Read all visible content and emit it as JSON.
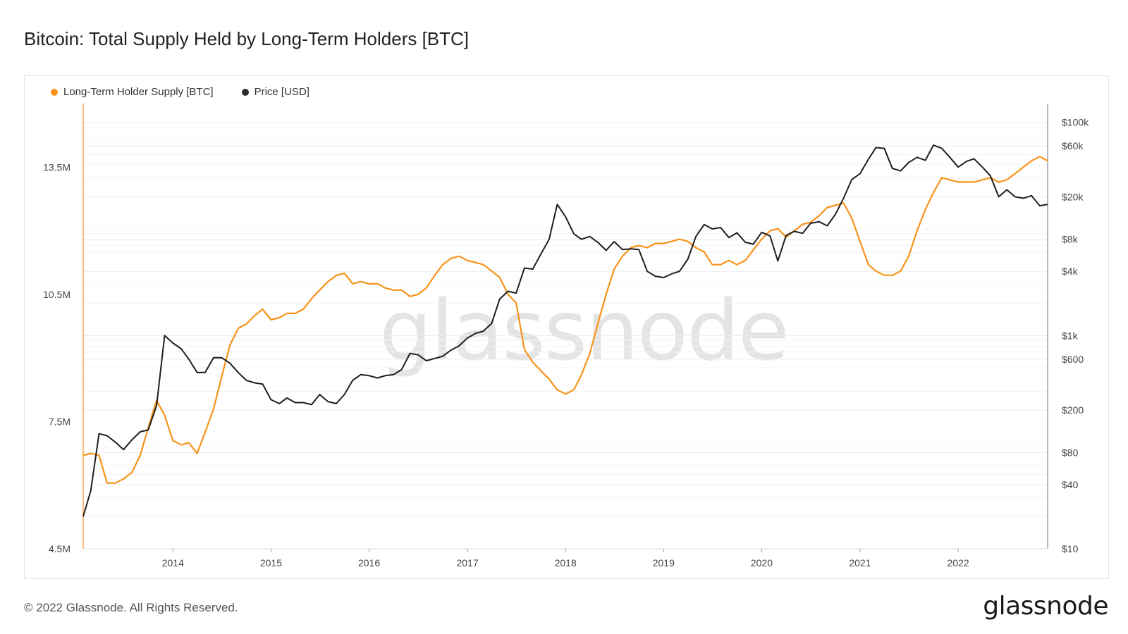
{
  "chart_title": "Bitcoin: Total Supply Held by Long-Term Holders [BTC]",
  "footer": "© 2022 Glassnode. All Rights Reserved.",
  "brand": "glassnode",
  "watermark": "glassnode",
  "colors": {
    "supply": "#f7931a",
    "price": "#1e1e1e",
    "grid": "#ececec"
  },
  "chart_data": {
    "type": "line",
    "title": "Bitcoin: Total Supply Held by Long-Term Holders [BTC]",
    "legend_position": "top-left",
    "grid": true,
    "x_ticks": [
      "2014",
      "2015",
      "2016",
      "2017",
      "2018",
      "2019",
      "2020",
      "2021",
      "2022"
    ],
    "x_range": [
      "2013-02-01",
      "2022-11-30"
    ],
    "y_left": {
      "ticks": [
        {
          "value": 4500000,
          "label": "4.5M"
        },
        {
          "value": 7500000,
          "label": "7.5M"
        },
        {
          "value": 10500000,
          "label": "10.5M"
        },
        {
          "value": 13500000,
          "label": "13.5M"
        }
      ],
      "range": [
        4500000,
        15000000
      ]
    },
    "y_right": {
      "scale": "log",
      "ticks": [
        {
          "value": 10,
          "label": "$10"
        },
        {
          "value": 40,
          "label": "$40"
        },
        {
          "value": 80,
          "label": "$80"
        },
        {
          "value": 200,
          "label": "$200"
        },
        {
          "value": 600,
          "label": "$600"
        },
        {
          "value": 1000,
          "label": "$1k"
        },
        {
          "value": 4000,
          "label": "$4k"
        },
        {
          "value": 8000,
          "label": "$8k"
        },
        {
          "value": 20000,
          "label": "$20k"
        },
        {
          "value": 60000,
          "label": "$60k"
        },
        {
          "value": 100000,
          "label": "$100k"
        }
      ],
      "range": [
        10,
        150000
      ]
    },
    "series": [
      {
        "name": "Long-Term Holder Supply [BTC]",
        "axis": "left",
        "points": [
          [
            "2013-02-01",
            6700000
          ],
          [
            "2013-03-01",
            6750000
          ],
          [
            "2013-04-01",
            6700000
          ],
          [
            "2013-05-01",
            6050000
          ],
          [
            "2013-06-01",
            6050000
          ],
          [
            "2013-07-01",
            6150000
          ],
          [
            "2013-08-01",
            6300000
          ],
          [
            "2013-09-01",
            6700000
          ],
          [
            "2013-10-01",
            7350000
          ],
          [
            "2013-11-01",
            8000000
          ],
          [
            "2013-12-01",
            7650000
          ],
          [
            "2014-01-01",
            7050000
          ],
          [
            "2014-02-01",
            6950000
          ],
          [
            "2014-03-01",
            7000000
          ],
          [
            "2014-04-01",
            6750000
          ],
          [
            "2014-05-01",
            7250000
          ],
          [
            "2014-06-01",
            7800000
          ],
          [
            "2014-07-01",
            8550000
          ],
          [
            "2014-08-01",
            9300000
          ],
          [
            "2014-09-01",
            9700000
          ],
          [
            "2014-10-01",
            9800000
          ],
          [
            "2014-11-01",
            10000000
          ],
          [
            "2014-12-01",
            10150000
          ],
          [
            "2015-01-01",
            9900000
          ],
          [
            "2015-02-01",
            9950000
          ],
          [
            "2015-03-01",
            10050000
          ],
          [
            "2015-04-01",
            10050000
          ],
          [
            "2015-05-01",
            10150000
          ],
          [
            "2015-06-01",
            10400000
          ],
          [
            "2015-07-01",
            10600000
          ],
          [
            "2015-08-01",
            10800000
          ],
          [
            "2015-09-01",
            10950000
          ],
          [
            "2015-10-01",
            11000000
          ],
          [
            "2015-11-01",
            10750000
          ],
          [
            "2015-12-01",
            10800000
          ],
          [
            "2016-01-01",
            10750000
          ],
          [
            "2016-02-01",
            10750000
          ],
          [
            "2016-03-01",
            10650000
          ],
          [
            "2016-04-01",
            10600000
          ],
          [
            "2016-05-01",
            10600000
          ],
          [
            "2016-06-01",
            10450000
          ],
          [
            "2016-07-01",
            10500000
          ],
          [
            "2016-08-01",
            10650000
          ],
          [
            "2016-09-01",
            10950000
          ],
          [
            "2016-10-01",
            11200000
          ],
          [
            "2016-11-01",
            11350000
          ],
          [
            "2016-12-01",
            11400000
          ],
          [
            "2017-01-01",
            11300000
          ],
          [
            "2017-02-01",
            11250000
          ],
          [
            "2017-03-01",
            11200000
          ],
          [
            "2017-04-01",
            11050000
          ],
          [
            "2017-05-01",
            10900000
          ],
          [
            "2017-06-01",
            10500000
          ],
          [
            "2017-07-01",
            10300000
          ],
          [
            "2017-08-01",
            9200000
          ],
          [
            "2017-09-01",
            8900000
          ],
          [
            "2017-10-01",
            8700000
          ],
          [
            "2017-11-01",
            8500000
          ],
          [
            "2017-12-01",
            8250000
          ],
          [
            "2018-01-01",
            8150000
          ],
          [
            "2018-02-01",
            8250000
          ],
          [
            "2018-03-01",
            8600000
          ],
          [
            "2018-04-01",
            9100000
          ],
          [
            "2018-05-01",
            9800000
          ],
          [
            "2018-06-01",
            10500000
          ],
          [
            "2018-07-01",
            11100000
          ],
          [
            "2018-08-01",
            11400000
          ],
          [
            "2018-09-01",
            11600000
          ],
          [
            "2018-10-01",
            11650000
          ],
          [
            "2018-11-01",
            11600000
          ],
          [
            "2018-12-01",
            11700000
          ],
          [
            "2019-01-01",
            11700000
          ],
          [
            "2019-02-01",
            11750000
          ],
          [
            "2019-03-01",
            11800000
          ],
          [
            "2019-04-01",
            11750000
          ],
          [
            "2019-05-01",
            11600000
          ],
          [
            "2019-06-01",
            11500000
          ],
          [
            "2019-07-01",
            11200000
          ],
          [
            "2019-08-01",
            11200000
          ],
          [
            "2019-09-01",
            11300000
          ],
          [
            "2019-10-01",
            11200000
          ],
          [
            "2019-11-01",
            11300000
          ],
          [
            "2019-12-01",
            11550000
          ],
          [
            "2020-01-01",
            11800000
          ],
          [
            "2020-02-01",
            12000000
          ],
          [
            "2020-03-01",
            12050000
          ],
          [
            "2020-04-01",
            11850000
          ],
          [
            "2020-05-01",
            12000000
          ],
          [
            "2020-06-01",
            12150000
          ],
          [
            "2020-07-01",
            12200000
          ],
          [
            "2020-08-01",
            12350000
          ],
          [
            "2020-09-01",
            12550000
          ],
          [
            "2020-10-01",
            12600000
          ],
          [
            "2020-11-01",
            12650000
          ],
          [
            "2020-12-01",
            12300000
          ],
          [
            "2021-01-01",
            11750000
          ],
          [
            "2021-02-01",
            11200000
          ],
          [
            "2021-03-01",
            11050000
          ],
          [
            "2021-04-01",
            10950000
          ],
          [
            "2021-05-01",
            10950000
          ],
          [
            "2021-06-01",
            11050000
          ],
          [
            "2021-07-01",
            11400000
          ],
          [
            "2021-08-01",
            12000000
          ],
          [
            "2021-09-01",
            12500000
          ],
          [
            "2021-10-01",
            12900000
          ],
          [
            "2021-11-01",
            13250000
          ],
          [
            "2021-12-01",
            13200000
          ],
          [
            "2022-01-01",
            13150000
          ],
          [
            "2022-02-01",
            13150000
          ],
          [
            "2022-03-01",
            13150000
          ],
          [
            "2022-04-01",
            13200000
          ],
          [
            "2022-05-01",
            13250000
          ],
          [
            "2022-06-01",
            13150000
          ],
          [
            "2022-07-01",
            13200000
          ],
          [
            "2022-08-01",
            13350000
          ],
          [
            "2022-09-01",
            13500000
          ],
          [
            "2022-10-01",
            13650000
          ],
          [
            "2022-11-01",
            13750000
          ],
          [
            "2022-11-30",
            13650000
          ]
        ]
      },
      {
        "name": "Price [USD]",
        "axis": "right",
        "points": [
          [
            "2013-02-01",
            20
          ],
          [
            "2013-03-01",
            35
          ],
          [
            "2013-04-01",
            120
          ],
          [
            "2013-05-01",
            115
          ],
          [
            "2013-06-01",
            100
          ],
          [
            "2013-07-01",
            85
          ],
          [
            "2013-08-01",
            105
          ],
          [
            "2013-09-01",
            125
          ],
          [
            "2013-10-01",
            130
          ],
          [
            "2013-11-01",
            220
          ],
          [
            "2013-12-01",
            1000
          ],
          [
            "2014-01-01",
            850
          ],
          [
            "2014-02-01",
            750
          ],
          [
            "2014-03-01",
            600
          ],
          [
            "2014-04-01",
            450
          ],
          [
            "2014-05-01",
            450
          ],
          [
            "2014-06-01",
            620
          ],
          [
            "2014-07-01",
            620
          ],
          [
            "2014-08-01",
            550
          ],
          [
            "2014-09-01",
            450
          ],
          [
            "2014-10-01",
            380
          ],
          [
            "2014-11-01",
            360
          ],
          [
            "2014-12-01",
            350
          ],
          [
            "2015-01-01",
            250
          ],
          [
            "2015-02-01",
            230
          ],
          [
            "2015-03-01",
            260
          ],
          [
            "2015-04-01",
            235
          ],
          [
            "2015-05-01",
            235
          ],
          [
            "2015-06-01",
            225
          ],
          [
            "2015-07-01",
            280
          ],
          [
            "2015-08-01",
            240
          ],
          [
            "2015-09-01",
            230
          ],
          [
            "2015-10-01",
            280
          ],
          [
            "2015-11-01",
            380
          ],
          [
            "2015-12-01",
            430
          ],
          [
            "2016-01-01",
            420
          ],
          [
            "2016-02-01",
            400
          ],
          [
            "2016-03-01",
            420
          ],
          [
            "2016-04-01",
            430
          ],
          [
            "2016-05-01",
            480
          ],
          [
            "2016-06-01",
            680
          ],
          [
            "2016-07-01",
            660
          ],
          [
            "2016-08-01",
            580
          ],
          [
            "2016-09-01",
            610
          ],
          [
            "2016-10-01",
            640
          ],
          [
            "2016-11-01",
            730
          ],
          [
            "2016-12-01",
            800
          ],
          [
            "2017-01-01",
            950
          ],
          [
            "2017-02-01",
            1050
          ],
          [
            "2017-03-01",
            1100
          ],
          [
            "2017-04-01",
            1300
          ],
          [
            "2017-05-01",
            2200
          ],
          [
            "2017-06-01",
            2600
          ],
          [
            "2017-07-01",
            2500
          ],
          [
            "2017-08-01",
            4300
          ],
          [
            "2017-09-01",
            4200
          ],
          [
            "2017-10-01",
            5800
          ],
          [
            "2017-11-01",
            8000
          ],
          [
            "2017-12-01",
            17000
          ],
          [
            "2018-01-01",
            13000
          ],
          [
            "2018-02-01",
            9000
          ],
          [
            "2018-03-01",
            8000
          ],
          [
            "2018-04-01",
            8500
          ],
          [
            "2018-05-01",
            7500
          ],
          [
            "2018-06-01",
            6300
          ],
          [
            "2018-07-01",
            7600
          ],
          [
            "2018-08-01",
            6400
          ],
          [
            "2018-09-01",
            6500
          ],
          [
            "2018-10-01",
            6400
          ],
          [
            "2018-11-01",
            4000
          ],
          [
            "2018-12-01",
            3600
          ],
          [
            "2019-01-01",
            3500
          ],
          [
            "2019-02-01",
            3800
          ],
          [
            "2019-03-01",
            4000
          ],
          [
            "2019-04-01",
            5200
          ],
          [
            "2019-05-01",
            8500
          ],
          [
            "2019-06-01",
            11000
          ],
          [
            "2019-07-01",
            10000
          ],
          [
            "2019-08-01",
            10300
          ],
          [
            "2019-09-01",
            8300
          ],
          [
            "2019-10-01",
            9200
          ],
          [
            "2019-11-01",
            7500
          ],
          [
            "2019-12-01",
            7200
          ],
          [
            "2020-01-01",
            9300
          ],
          [
            "2020-02-01",
            8600
          ],
          [
            "2020-03-01",
            5000
          ],
          [
            "2020-04-01",
            8700
          ],
          [
            "2020-05-01",
            9500
          ],
          [
            "2020-06-01",
            9100
          ],
          [
            "2020-07-01",
            11300
          ],
          [
            "2020-08-01",
            11700
          ],
          [
            "2020-09-01",
            10700
          ],
          [
            "2020-10-01",
            13700
          ],
          [
            "2020-11-01",
            19500
          ],
          [
            "2020-12-01",
            29000
          ],
          [
            "2021-01-01",
            33000
          ],
          [
            "2021-02-01",
            45000
          ],
          [
            "2021-03-01",
            58000
          ],
          [
            "2021-04-01",
            57000
          ],
          [
            "2021-05-01",
            37000
          ],
          [
            "2021-06-01",
            35000
          ],
          [
            "2021-07-01",
            42000
          ],
          [
            "2021-08-01",
            47000
          ],
          [
            "2021-09-01",
            44000
          ],
          [
            "2021-10-01",
            61000
          ],
          [
            "2021-11-01",
            57000
          ],
          [
            "2021-12-01",
            47000
          ],
          [
            "2022-01-01",
            38000
          ],
          [
            "2022-02-01",
            43000
          ],
          [
            "2022-03-01",
            45500
          ],
          [
            "2022-04-01",
            38000
          ],
          [
            "2022-05-01",
            31500
          ],
          [
            "2022-06-01",
            20000
          ],
          [
            "2022-07-01",
            23300
          ],
          [
            "2022-08-01",
            20000
          ],
          [
            "2022-09-01",
            19400
          ],
          [
            "2022-10-01",
            20500
          ],
          [
            "2022-11-01",
            16500
          ],
          [
            "2022-11-30",
            17000
          ]
        ]
      }
    ]
  }
}
